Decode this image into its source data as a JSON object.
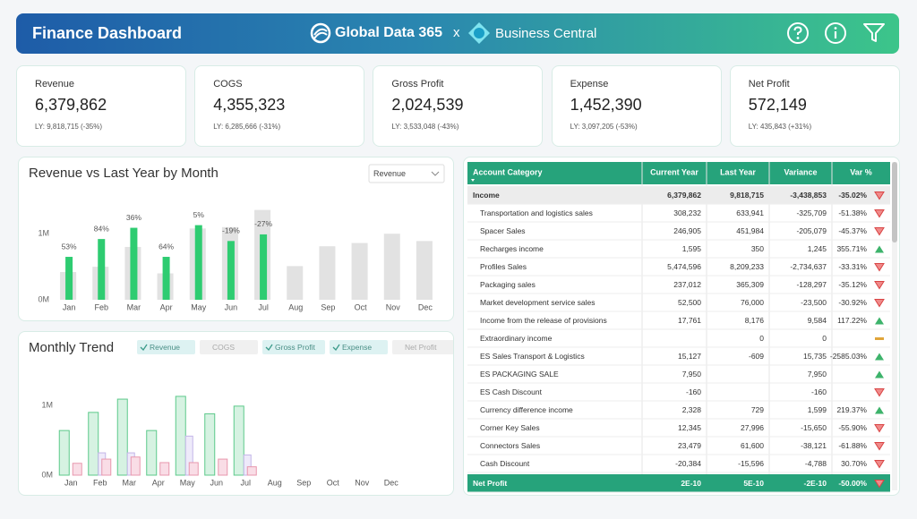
{
  "header": {
    "title": "Finance Dashboard",
    "brand_primary": "Global Data 365",
    "separator": "x",
    "brand_secondary": "Business Central"
  },
  "kpis": [
    {
      "label": "Revenue",
      "value": "6,379,862",
      "comparison": "LY: 9,818,715 (-35%)",
      "color": "#2fbf71",
      "tint": "#d9f5e4"
    },
    {
      "label": "COGS",
      "value": "4,355,323",
      "comparison": "LY: 6,285,666 (-31%)",
      "color": "#f2b52a",
      "tint": "#fdeebd"
    },
    {
      "label": "Gross Profit",
      "value": "2,024,539",
      "comparison": "LY: 3,533,048 (-43%)",
      "color": "#b67ae0",
      "tint": "#eedff8"
    },
    {
      "label": "Expense",
      "value": "1,452,390",
      "comparison": "LY: 3,097,205 (-53%)",
      "color": "#e8506a",
      "tint": "#fbdde2"
    },
    {
      "label": "Net Profit",
      "value": "572,149",
      "comparison": "LY: 435,843 (+31%)",
      "color": "#2aa6d8",
      "tint": "#d9f0fb"
    }
  ],
  "revenue_chart": {
    "type": "bar",
    "title": "Revenue vs Last Year by Month",
    "dropdown": "Revenue",
    "categories": [
      "Jan",
      "Feb",
      "Mar",
      "Apr",
      "May",
      "Jun",
      "Jul",
      "Aug",
      "Sep",
      "Oct",
      "Nov",
      "Dec"
    ],
    "series": [
      {
        "color": "#e2e2e2",
        "values": [
          0.42,
          0.5,
          0.8,
          0.4,
          1.08,
          1.1,
          1.36,
          0.51,
          0.81,
          0.86,
          1.0,
          0.89
        ]
      },
      {
        "color": "#2ecc71",
        "values": [
          0.65,
          0.92,
          1.09,
          0.65,
          1.13,
          0.89,
          0.99,
          null,
          null,
          null,
          null,
          null
        ]
      }
    ],
    "change_labels": [
      "53%",
      "84%",
      "36%",
      "64%",
      "5%",
      "-19%",
      "-27%",
      null,
      null,
      null,
      null,
      null
    ],
    "ylim": [
      0,
      1.45
    ],
    "yticks": [
      {
        "value": 0,
        "label": "0M"
      },
      {
        "value": 1,
        "label": "1M"
      }
    ],
    "grid": false
  },
  "trend_chart": {
    "type": "bar",
    "title": "Monthly Trend",
    "categories": [
      "Jan",
      "Feb",
      "Mar",
      "Apr",
      "May",
      "Jun",
      "Jul",
      "Aug",
      "Sep",
      "Oct",
      "Nov",
      "Dec"
    ],
    "series": [
      {
        "name": "Revenue",
        "visible": true,
        "color": "#5cc98a",
        "fill": "#d6f2e2",
        "values": [
          0.64,
          0.9,
          1.09,
          0.64,
          1.13,
          0.88,
          0.99,
          null,
          null,
          null,
          null,
          null
        ]
      },
      {
        "name": "COGS",
        "visible": false
      },
      {
        "name": "Gross Profit",
        "visible": true,
        "color": "#c3b6e8",
        "fill": "#eeeafa",
        "values": [
          0,
          0.32,
          0.32,
          0,
          0.56,
          0,
          0.29,
          null,
          null,
          null,
          null,
          null
        ]
      },
      {
        "name": "Expense",
        "visible": true,
        "color": "#e897ad",
        "fill": "#f9dde6",
        "values": [
          0.17,
          0.23,
          0.26,
          0.18,
          0.18,
          0.23,
          0.12,
          null,
          null,
          null,
          null,
          null
        ]
      },
      {
        "name": "Net Profit",
        "visible": false
      }
    ],
    "ylim": [
      0,
      1.45
    ],
    "yticks": [
      {
        "value": 0,
        "label": "0M"
      },
      {
        "value": 1,
        "label": "1M"
      }
    ],
    "grid": false
  },
  "table": {
    "columns": [
      "Account Category",
      "Current Year",
      "Last Year",
      "Variance",
      "Var %"
    ],
    "rows": [
      {
        "bold": true,
        "trend": "down",
        "cells": [
          "Income",
          "6,379,862",
          "9,818,715",
          "-3,438,853",
          "-35.02%"
        ]
      },
      {
        "trend": "down",
        "cells": [
          "Transportation and logistics sales",
          "308,232",
          "633,941",
          "-325,709",
          "-51.38%"
        ]
      },
      {
        "trend": "down",
        "cells": [
          "Spacer Sales",
          "246,905",
          "451,984",
          "-205,079",
          "-45.37%"
        ]
      },
      {
        "trend": "up",
        "cells": [
          "Recharges income",
          "1,595",
          "350",
          "1,245",
          "355.71%"
        ]
      },
      {
        "trend": "down",
        "cells": [
          "Profiles Sales",
          "5,474,596",
          "8,209,233",
          "-2,734,637",
          "-33.31%"
        ]
      },
      {
        "trend": "down",
        "cells": [
          "Packaging sales",
          "237,012",
          "365,309",
          "-128,297",
          "-35.12%"
        ]
      },
      {
        "trend": "down",
        "cells": [
          "Market development service sales",
          "52,500",
          "76,000",
          "-23,500",
          "-30.92%"
        ]
      },
      {
        "trend": "up",
        "cells": [
          "Income from the release of provisions",
          "17,761",
          "8,176",
          "9,584",
          "117.22%"
        ]
      },
      {
        "trend": "flat",
        "cells": [
          "Extraordinary income",
          null,
          "0",
          "0",
          null
        ]
      },
      {
        "trend": "up",
        "cells": [
          "ES Sales Transport & Logistics",
          "15,127",
          "-609",
          "15,735",
          "-2585.03%"
        ]
      },
      {
        "trend": "up",
        "cells": [
          "ES PACKAGING SALE",
          "7,950",
          null,
          "7,950",
          null
        ]
      },
      {
        "trend": "down",
        "cells": [
          "ES Cash Discount",
          "-160",
          null,
          "-160",
          null
        ]
      },
      {
        "trend": "up",
        "cells": [
          "Currency difference income",
          "2,328",
          "729",
          "1,599",
          "219.37%"
        ]
      },
      {
        "trend": "down",
        "cells": [
          "Corner Key Sales",
          "12,345",
          "27,996",
          "-15,650",
          "-55.90%"
        ]
      },
      {
        "trend": "down",
        "cells": [
          "Connectors Sales",
          "23,479",
          "61,600",
          "-38,121",
          "-61.88%"
        ]
      },
      {
        "trend": "down",
        "cells": [
          "Cash Discount",
          "-20,384",
          "-15,596",
          "-4,788",
          "30.70%"
        ]
      }
    ],
    "total": {
      "trend": "down",
      "cells": [
        "Net Profit",
        "2E-10",
        "5E-10",
        "-2E-10",
        "-50.00%"
      ]
    }
  }
}
